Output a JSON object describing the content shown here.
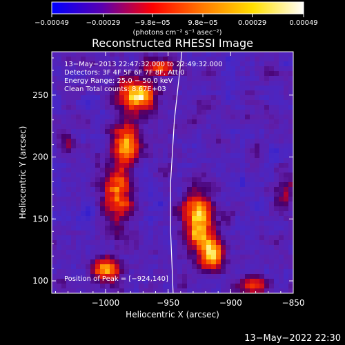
{
  "chart_data": {
    "type": "heatmap",
    "title": "Reconstructed RHESSI Image",
    "xlabel": "Heliocentric X (arcsec)",
    "ylabel": "Heliocentric Y (arcsec)",
    "xlim": [
      -1043,
      -850
    ],
    "ylim": [
      90,
      285
    ],
    "xticks": [
      -1000,
      -950,
      -900,
      -850
    ],
    "yticks": [
      100,
      150,
      200,
      250
    ],
    "xtick_labels": [
      "−1000",
      "−950",
      "−900",
      "−850"
    ],
    "ytick_labels": [
      "100",
      "150",
      "200",
      "250"
    ],
    "colorbar": {
      "vmin": -0.00049,
      "vmax": 0.00049,
      "ticks": [
        -0.00049,
        -0.00029,
        -9.8e-05,
        9.8e-05,
        0.00029,
        0.00049
      ],
      "tick_labels": [
        "−0.00049",
        "−0.00029",
        "−9.8e−05",
        "9.8e−05",
        "0.00029",
        "0.00049"
      ],
      "units_label": "(photons cm⁻² s⁻¹ asec⁻²)",
      "colors": [
        "#0000ff",
        "#5a00b0",
        "#ff0000",
        "#ff7a00",
        "#ffe000",
        "#ffffff"
      ]
    },
    "annotations": [
      "13−May−2013 22:47:32.000 to 22:49:32.000",
      "Detectors: 3F 4F 5F 6F 7F 8F, Att 0",
      "Energy Range: 25.0 − 50.0 keV",
      "Clean     Total counts: 8.67E+03"
    ],
    "peak_label": "Position of Peak = [−924,140]",
    "peak_position": [
      -924,
      140
    ],
    "limb": [
      [
        -939,
        285
      ],
      [
        -945,
        230
      ],
      [
        -948,
        180
      ],
      [
        -948,
        140
      ],
      [
        -946,
        90
      ]
    ],
    "sources": [
      {
        "x": -975,
        "y": 250,
        "sx": 12,
        "sy": 9,
        "amp": 1.0
      },
      {
        "x": -983,
        "y": 212,
        "sx": 8,
        "sy": 12,
        "amp": 0.85
      },
      {
        "x": -990,
        "y": 170,
        "sx": 9,
        "sy": 18,
        "amp": 0.75
      },
      {
        "x": -998,
        "y": 108,
        "sx": 8,
        "sy": 7,
        "amp": 0.95
      },
      {
        "x": -925,
        "y": 148,
        "sx": 9,
        "sy": 17,
        "amp": 1.0
      },
      {
        "x": -915,
        "y": 122,
        "sx": 8,
        "sy": 10,
        "amp": 0.8
      },
      {
        "x": -955,
        "y": 272,
        "sx": 10,
        "sy": 6,
        "amp": 0.6
      },
      {
        "x": -880,
        "y": 97,
        "sx": 9,
        "sy": 5,
        "amp": 0.55
      },
      {
        "x": -1030,
        "y": 212,
        "sx": 5,
        "sy": 6,
        "amp": 0.4
      },
      {
        "x": -858,
        "y": 170,
        "sx": 6,
        "sy": 10,
        "amp": 0.35
      }
    ]
  },
  "footer": {
    "timestamp": "13−May−2022 22:30"
  }
}
